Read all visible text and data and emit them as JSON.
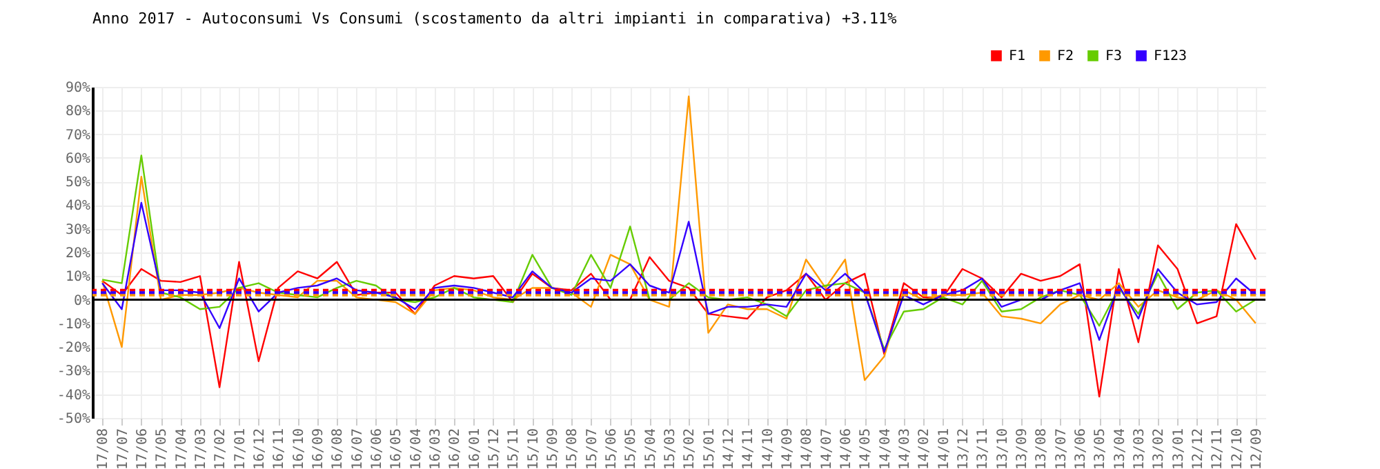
{
  "chart_data": {
    "type": "line",
    "title": "Anno 2017 - Autoconsumi Vs Consumi (scostamento da altri impianti in comparativa) +3.11%",
    "categories": [
      "17/08",
      "17/07",
      "17/06",
      "17/05",
      "17/04",
      "17/03",
      "17/02",
      "17/01",
      "16/12",
      "16/11",
      "16/10",
      "16/09",
      "16/08",
      "16/07",
      "16/06",
      "16/05",
      "16/04",
      "16/03",
      "16/02",
      "16/01",
      "15/12",
      "15/11",
      "15/10",
      "15/09",
      "15/08",
      "15/07",
      "15/06",
      "15/05",
      "15/04",
      "15/03",
      "15/02",
      "15/01",
      "14/12",
      "14/11",
      "14/10",
      "14/09",
      "14/08",
      "14/07",
      "14/06",
      "14/05",
      "14/04",
      "14/03",
      "14/02",
      "14/01",
      "13/12",
      "13/11",
      "13/10",
      "13/09",
      "13/08",
      "13/07",
      "13/06",
      "13/05",
      "13/04",
      "13/03",
      "13/02",
      "13/01",
      "12/12",
      "12/11",
      "12/10",
      "12/09"
    ],
    "series": [
      {
        "name": "F1",
        "color": "#ff0000",
        "values": [
          8,
          2,
          13,
          8,
          7.5,
          10,
          -37,
          16,
          -26,
          5,
          12,
          9,
          16,
          2,
          3,
          3,
          -6,
          6,
          10,
          9,
          10,
          -1,
          11,
          5,
          4,
          11,
          0,
          0,
          18,
          8,
          5,
          -6,
          -7,
          -8,
          1,
          4,
          11,
          0,
          7,
          11,
          -23,
          7,
          1,
          1,
          13,
          9,
          1,
          11,
          8,
          10,
          15,
          -41,
          13,
          -18,
          23,
          13,
          -10,
          -7,
          32,
          17
        ]
      },
      {
        "name": "F2",
        "color": "#ff9900",
        "values": [
          8,
          -20,
          52,
          0,
          2,
          2,
          3,
          5,
          3,
          2,
          1,
          8,
          8,
          1,
          0,
          -1,
          -6,
          4,
          5,
          4,
          1,
          0,
          5,
          5,
          3,
          -3,
          19,
          15,
          0,
          -3,
          86,
          -14,
          -2,
          -4,
          -4,
          -8,
          17,
          5,
          17,
          -34,
          -24,
          4,
          0,
          2,
          2,
          3,
          -7,
          -8,
          -10,
          -2,
          2,
          0,
          7,
          -3,
          4,
          1,
          0,
          4,
          0,
          -10
        ]
      },
      {
        "name": "F3",
        "color": "#66cc00",
        "values": [
          8.5,
          7,
          61,
          3,
          1,
          -4,
          -3,
          5,
          7,
          3,
          2,
          1,
          5,
          8,
          6,
          0,
          -1,
          1,
          5,
          1,
          0,
          -1,
          19,
          5,
          2,
          19,
          5,
          31,
          0,
          0,
          7,
          1,
          0,
          1,
          -2,
          -7,
          4,
          6,
          7,
          3,
          -21,
          -5,
          -4,
          1,
          -2,
          8,
          -5,
          -4,
          1,
          4,
          2,
          -11,
          5,
          -6,
          11,
          -4,
          3,
          4,
          -5,
          0
        ]
      },
      {
        "name": "F123",
        "color": "#3300ff",
        "values": [
          7,
          -4,
          41,
          4,
          4,
          3,
          -12,
          9,
          -5,
          3,
          5,
          6,
          9,
          4,
          3,
          1,
          -4,
          5,
          6,
          5,
          3,
          1,
          12,
          5,
          3,
          9,
          8,
          15,
          6,
          3,
          33,
          -6,
          -3,
          -3,
          -2,
          -3,
          11,
          4,
          11,
          3,
          -22,
          2,
          -2,
          2,
          4,
          9,
          -3,
          0,
          0,
          4,
          7,
          -17,
          6,
          -8,
          13,
          3,
          -2,
          -1,
          9,
          2
        ]
      }
    ],
    "ylim": [
      -50,
      90
    ],
    "yticks": [
      {
        "value": -50,
        "label": "-50%"
      },
      {
        "value": -40,
        "label": "-40%"
      },
      {
        "value": -30,
        "label": "-30%"
      },
      {
        "value": -20,
        "label": "-20%"
      },
      {
        "value": -10,
        "label": "-10%"
      },
      {
        "value": 0,
        "label": "0%"
      },
      {
        "value": 10,
        "label": "10%"
      },
      {
        "value": 20,
        "label": "20%"
      },
      {
        "value": 30,
        "label": "30%"
      },
      {
        "value": 40,
        "label": "40%"
      },
      {
        "value": 50,
        "label": "50%"
      },
      {
        "value": 60,
        "label": "60%"
      },
      {
        "value": 70,
        "label": "70%"
      },
      {
        "value": 80,
        "label": "80%"
      },
      {
        "value": 90,
        "label": "90%"
      }
    ],
    "ref_lines": [
      {
        "axis": "y",
        "value": 0,
        "color": "#000000",
        "line_style": "solid"
      },
      {
        "axis": "y",
        "value": 2,
        "color": "#ff9900",
        "line_style": "dashed"
      },
      {
        "axis": "y",
        "value": 4,
        "color": "#ff0000",
        "line_style": "dashed"
      },
      {
        "axis": "y",
        "value": 3,
        "color": "#3300ff",
        "line_style": "dashed"
      }
    ],
    "grid": true,
    "legend": "top right",
    "marker": "none",
    "line_style": "solid"
  }
}
